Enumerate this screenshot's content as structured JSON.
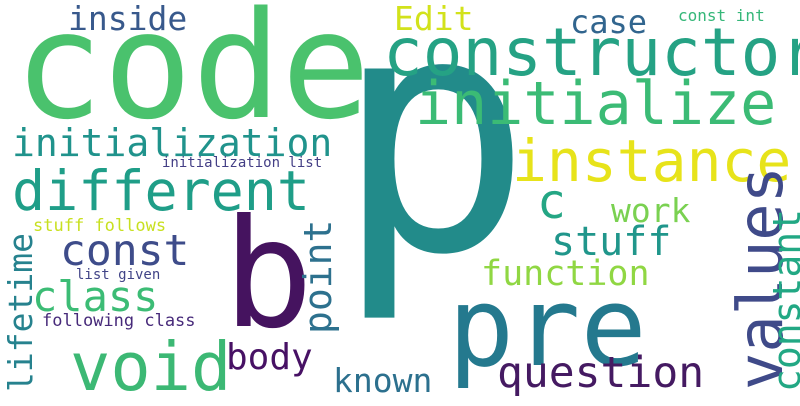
{
  "words": [
    {
      "key": "code",
      "text": "code",
      "color": "#4ac26d"
    },
    {
      "key": "p",
      "text": "p",
      "color": "#228b8a"
    },
    {
      "key": "pre",
      "text": "pre",
      "color": "#24798e"
    },
    {
      "key": "b",
      "text": "b",
      "color": "#45135f"
    },
    {
      "key": "constructor",
      "text": "constructor",
      "color": "#25a284"
    },
    {
      "key": "initialize",
      "text": "initialize",
      "color": "#3bbb75"
    },
    {
      "key": "instance",
      "text": "instance",
      "color": "#e7e31a"
    },
    {
      "key": "different",
      "text": "different",
      "color": "#1f9e88"
    },
    {
      "key": "values",
      "text": "values",
      "color": "#3f4a89"
    },
    {
      "key": "void",
      "text": "void",
      "color": "#3cb874"
    },
    {
      "key": "question",
      "text": "question",
      "color": "#451a62"
    },
    {
      "key": "initialization",
      "text": "initialization",
      "color": "#20938c"
    },
    {
      "key": "class",
      "text": "class",
      "color": "#3cbc75"
    },
    {
      "key": "const",
      "text": "const",
      "color": "#3e4c8a"
    },
    {
      "key": "stuff",
      "text": "stuff",
      "color": "#20968b"
    },
    {
      "key": "function",
      "text": "function",
      "color": "#90d743"
    },
    {
      "key": "c",
      "text": "c",
      "color": "#24a684"
    },
    {
      "key": "work",
      "text": "work",
      "color": "#7ad151"
    },
    {
      "key": "inside",
      "text": "inside",
      "color": "#38598c"
    },
    {
      "key": "edit",
      "text": "Edit",
      "color": "#d2e21b"
    },
    {
      "key": "case",
      "text": "case",
      "color": "#31658e"
    },
    {
      "key": "const_int",
      "text": "const int",
      "color": "#35b779"
    },
    {
      "key": "known",
      "text": "known",
      "color": "#2c708e"
    },
    {
      "key": "body",
      "text": "body",
      "color": "#471164"
    },
    {
      "key": "constant",
      "text": "constant",
      "color": "#22a884"
    },
    {
      "key": "point",
      "text": "point",
      "color": "#2d718e"
    },
    {
      "key": "lifetime",
      "text": "lifetime",
      "color": "#26828e"
    },
    {
      "key": "initialization_list",
      "text": "initialization list",
      "color": "#433e85"
    },
    {
      "key": "stuff_follows",
      "text": "stuff follows",
      "color": "#c8e020"
    },
    {
      "key": "list_given",
      "text": "list given",
      "color": "#414487"
    },
    {
      "key": "following_class",
      "text": "following class",
      "color": "#472a7a"
    }
  ]
}
